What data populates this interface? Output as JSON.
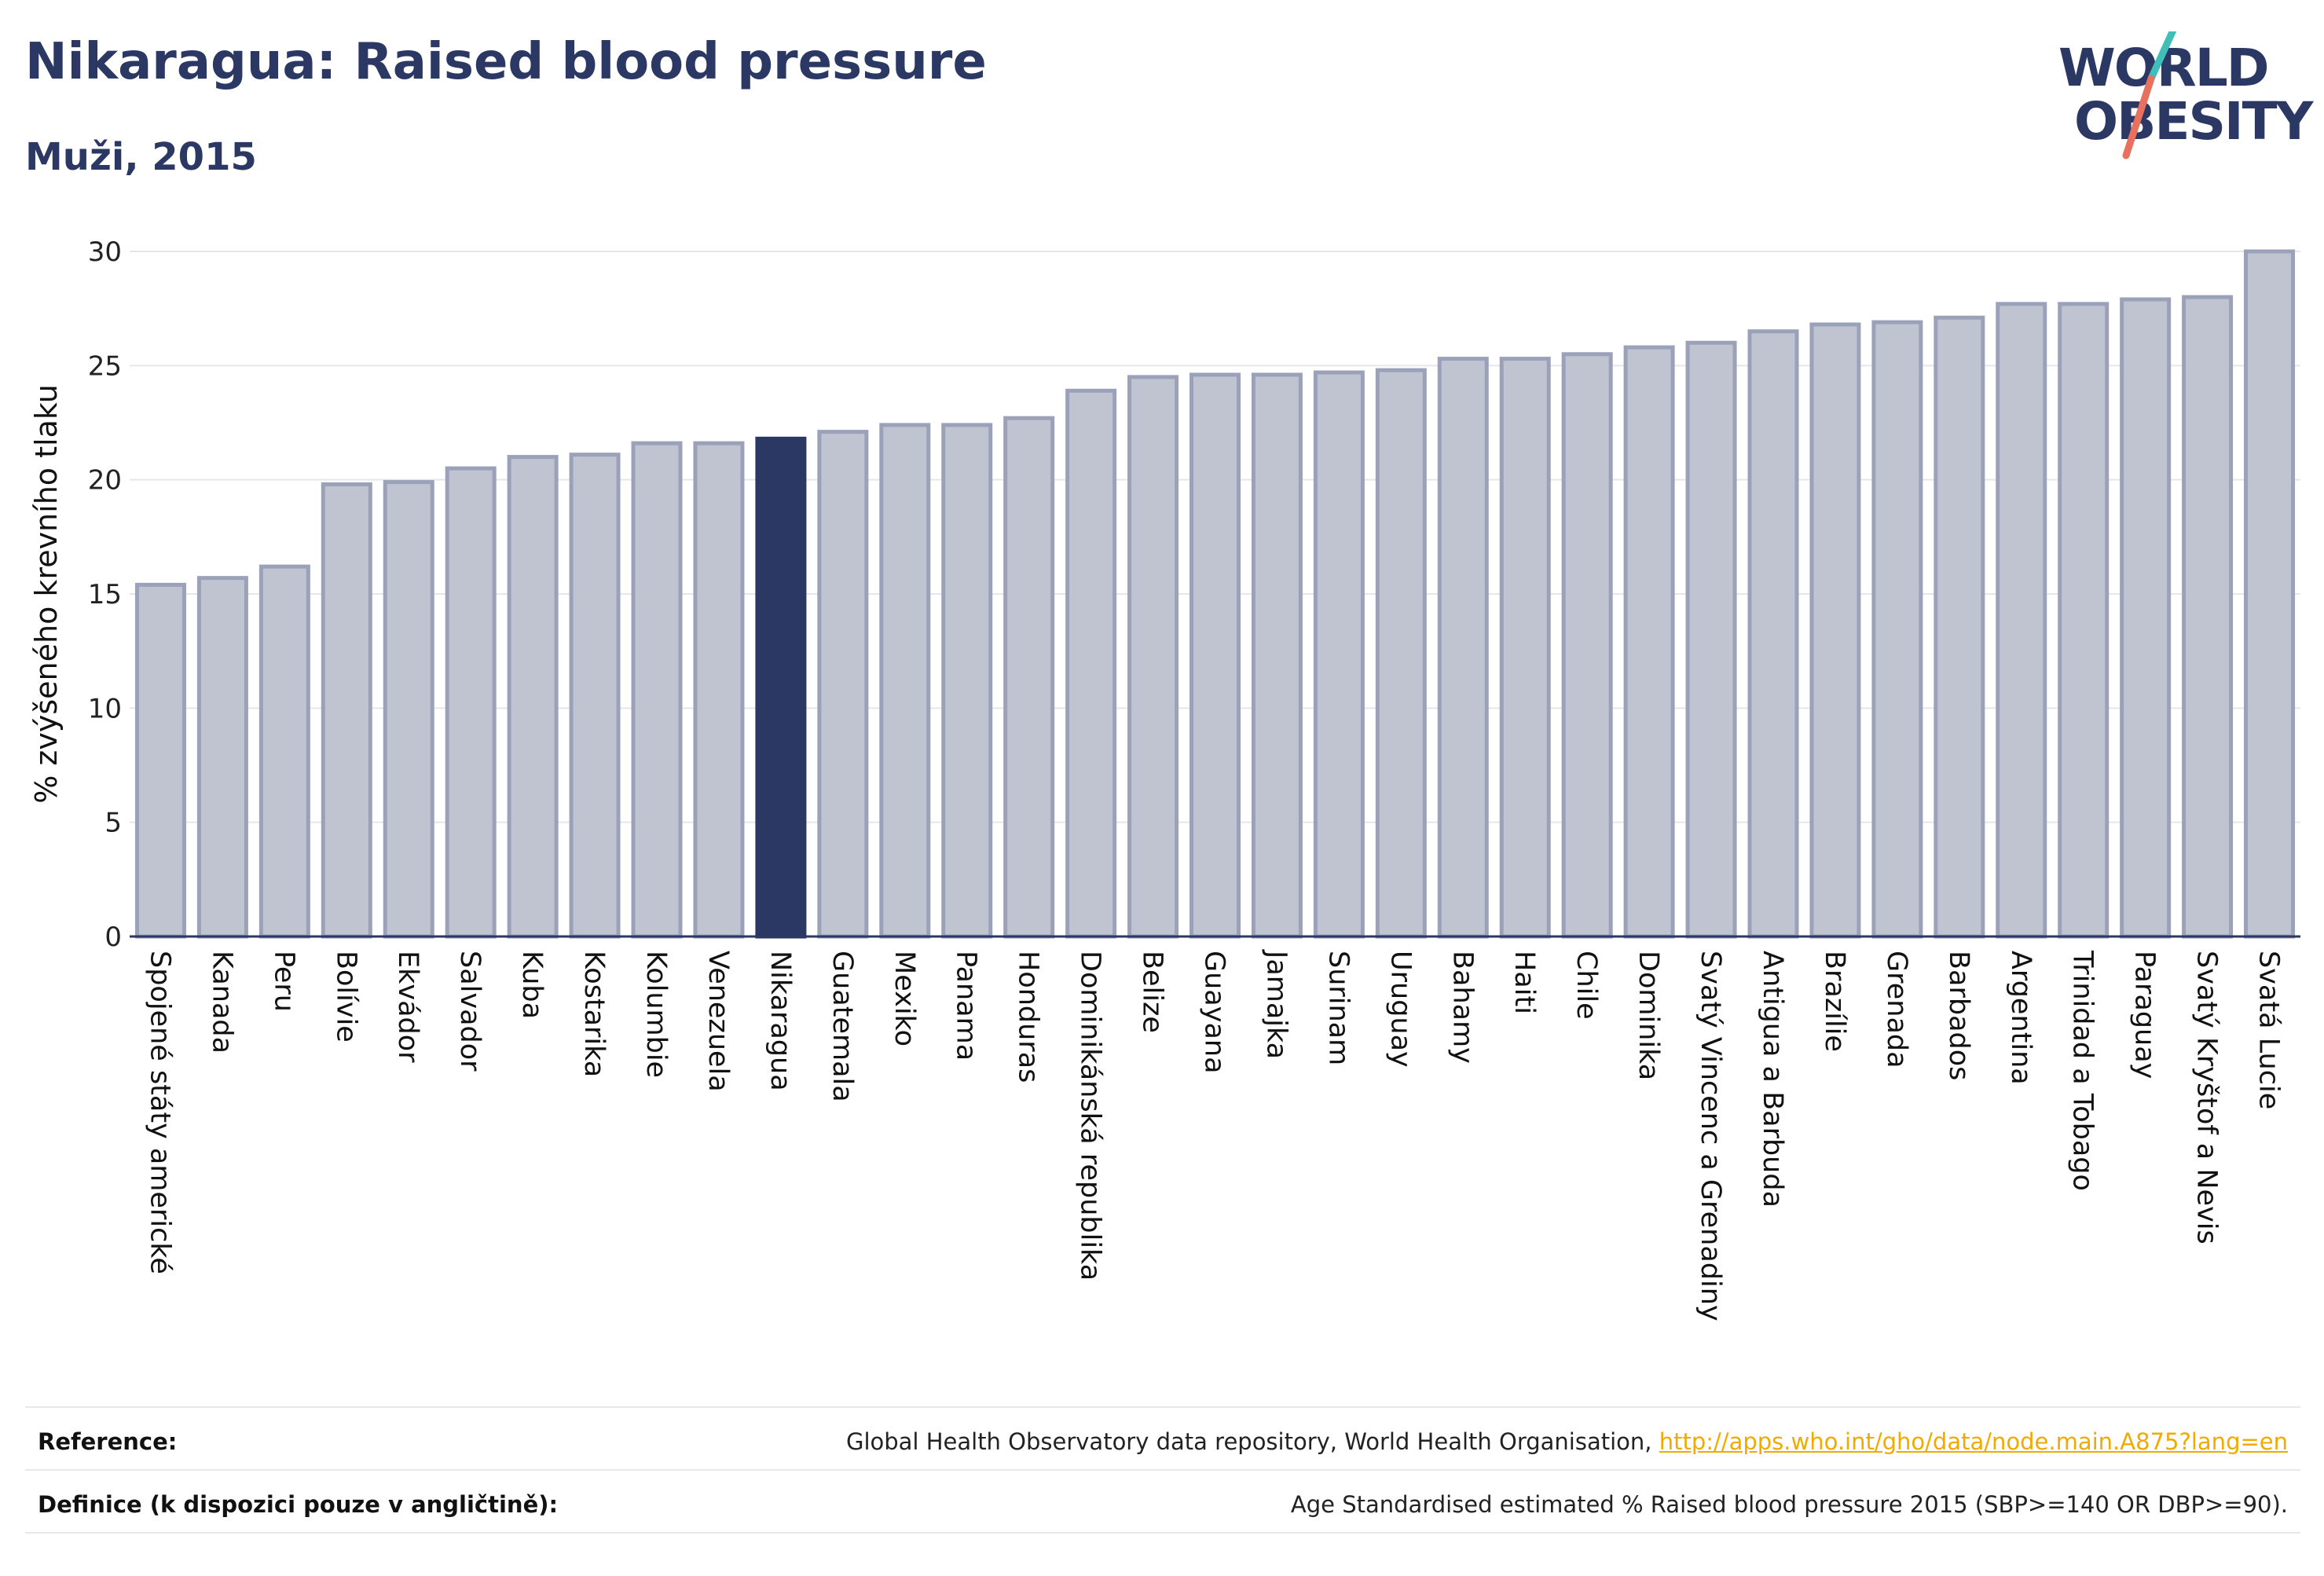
{
  "header": {
    "title": "Nikaragua: Raised blood pressure",
    "subtitle": "Muži, 2015"
  },
  "logo": {
    "line1": "WORLD",
    "line2": "OBESITY",
    "slash_colors": [
      "#3fbfb7",
      "#e8705e"
    ]
  },
  "colors": {
    "bar": "#c0c4d1",
    "bar_border": "#9aa1b9",
    "highlight": "#2b3864",
    "grid": "#e3e6ec",
    "axis": "#2b3864",
    "link": "#f2a900"
  },
  "chart_data": {
    "type": "bar",
    "title": "",
    "ylabel": "% zvýšeného krevního tlaku",
    "xlabel": "",
    "ylim": [
      0,
      30
    ],
    "yticks": [
      0,
      5,
      10,
      15,
      20,
      25,
      30
    ],
    "grid": true,
    "highlight": "Nikaragua",
    "categories": [
      "Spojené státy americké",
      "Kanada",
      "Peru",
      "Bolívie",
      "Ekvádor",
      "Salvador",
      "Kuba",
      "Kostarika",
      "Kolumbie",
      "Venezuela",
      "Nikaragua",
      "Guatemala",
      "Mexiko",
      "Panama",
      "Honduras",
      "Dominikánská republika",
      "Belize",
      "Guayana",
      "Jamajka",
      "Surinam",
      "Uruguay",
      "Bahamy",
      "Haiti",
      "Chile",
      "Dominika",
      "Svatý Vincenc a Grenadiny",
      "Antigua a Barbuda",
      "Brazílie",
      "Grenada",
      "Barbados",
      "Argentina",
      "Trinidad a Tobago",
      "Paraguay",
      "Svatý Kryštof a Nevis",
      "Svatá Lucie"
    ],
    "values": [
      15.4,
      15.7,
      16.2,
      19.8,
      19.9,
      20.5,
      21.0,
      21.1,
      21.6,
      21.6,
      21.8,
      22.1,
      22.4,
      22.4,
      22.7,
      23.9,
      24.5,
      24.6,
      24.6,
      24.7,
      24.8,
      25.3,
      25.3,
      25.5,
      25.8,
      26.0,
      26.5,
      26.8,
      26.9,
      27.1,
      27.7,
      27.7,
      27.9,
      28.0,
      30.0
    ]
  },
  "footer": {
    "reference_label": "Reference:",
    "reference_text": "Global Health Observatory data repository, World Health Organisation, ",
    "reference_link": "http://apps.who.int/gho/data/node.main.A875?lang=en",
    "definition_label": "Definice (k dispozici pouze v angličtině):",
    "definition_text": "Age Standardised estimated % Raised blood pressure 2015 (SBP>=140 OR DBP>=90)."
  }
}
